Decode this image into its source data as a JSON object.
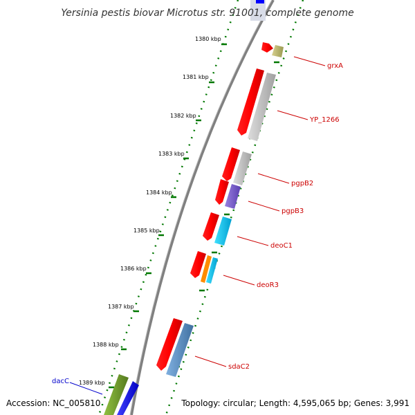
{
  "title": "Yersinia pestis biovar Microtus str. 91001, complete genome",
  "footer": {
    "accession": "Accession: NC_005810",
    "topology": "Topology: circular; Length: 4,595,065 bp; Genes: 3,991"
  },
  "ticks": [
    "1380 kbp",
    "1381 kbp",
    "1382 kbp",
    "1383 kbp",
    "1384 kbp",
    "1385 kbp",
    "1386 kbp",
    "1387 kbp",
    "1388 kbp",
    "1389 kbp"
  ],
  "genes": {
    "grxA": "grxA",
    "yp1266": "YP_1266",
    "pgpB2": "pgpB2",
    "pgpB3": "pgpB3",
    "deoC1": "deoC1",
    "deoR3": "deoR3",
    "sdaC2": "sdaC2",
    "dacC": "dacC"
  },
  "colors": {
    "forward_feature": "#ff0000",
    "label_red": "#cc0000",
    "label_blue": "#0000cc",
    "tick_green": "#007700",
    "backbone": "#808080"
  }
}
